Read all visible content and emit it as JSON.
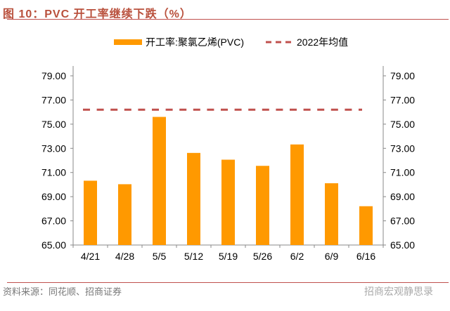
{
  "title": "图 10：PVC 开工率继续下跌（%）",
  "source": "资料来源：同花顺、招商证券",
  "watermark": "招商宏观静思录",
  "colors": {
    "bar": "#ff9900",
    "avg_line": "#c0504d",
    "title": "#b9503c"
  },
  "chart_data": {
    "type": "bar",
    "categories": [
      "4/21",
      "4/28",
      "5/5",
      "5/12",
      "5/19",
      "5/26",
      "6/2",
      "6/9",
      "6/16"
    ],
    "series": [
      {
        "name": "开工率:聚氯乙烯(PVC)",
        "type": "bar",
        "values": [
          70.32,
          70.03,
          75.6,
          72.62,
          72.06,
          71.55,
          73.32,
          70.11,
          68.21
        ]
      },
      {
        "name": "2022年均值",
        "type": "dashed-line",
        "value": 76.2
      }
    ],
    "ylim": [
      65,
      79
    ],
    "yticks": [
      "65.00",
      "67.00",
      "69.00",
      "71.00",
      "73.00",
      "75.00",
      "77.00",
      "79.00"
    ],
    "secondary_yticks": [
      "65.00",
      "67.00",
      "69.00",
      "71.00",
      "73.00",
      "75.00",
      "77.00",
      "79.00"
    ],
    "grid": false,
    "legend": "top"
  }
}
